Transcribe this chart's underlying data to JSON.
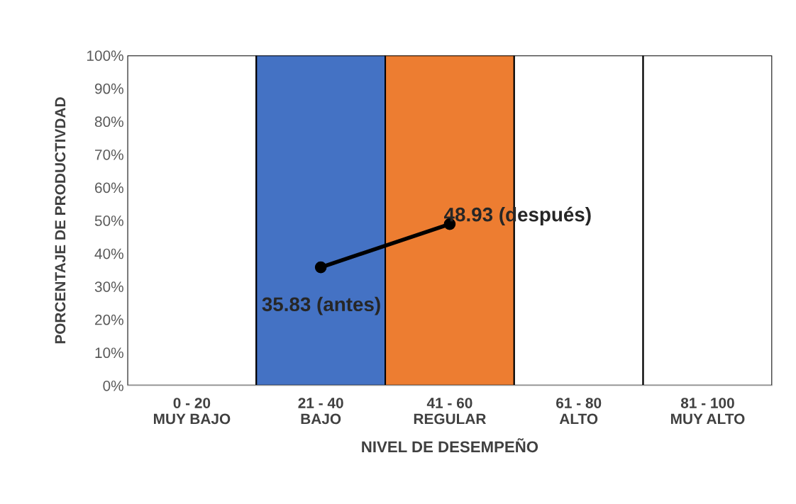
{
  "chart_data": {
    "type": "bar",
    "xlabel": "NIVEL DE DESEMPEÑO",
    "ylabel": "PORCENTAJE DE PRODUCTIVDAD",
    "categories": [
      "0 - 20\nMUY BAJO",
      "21 - 40\nBAJO",
      "41 - 60\nREGULAR",
      "61 - 80\nALTO",
      "81 - 100\nMUY ALTO"
    ],
    "series": [
      {
        "values": [
          100,
          100,
          100,
          100,
          100
        ],
        "colors": [
          "#ffffff",
          "#4472c4",
          "#ed7d31",
          "#ffffff",
          "#ffffff"
        ]
      },
      {
        "type": "line",
        "color": "#000000",
        "marker": "circle",
        "values": [
          null,
          35.83,
          48.93,
          null,
          null
        ],
        "value_labels": [
          null,
          "35.83 (antes)",
          "48.93 (después)",
          null,
          null
        ]
      }
    ],
    "ylim": [
      0,
      100
    ],
    "yticks": [
      {
        "value": 0,
        "label": "0%"
      },
      {
        "value": 10,
        "label": "10%"
      },
      {
        "value": 20,
        "label": "20%"
      },
      {
        "value": 30,
        "label": "30%"
      },
      {
        "value": 40,
        "label": "40%"
      },
      {
        "value": 50,
        "label": "50%"
      },
      {
        "value": 60,
        "label": "60%"
      },
      {
        "value": 70,
        "label": "70%"
      },
      {
        "value": 80,
        "label": "80%"
      },
      {
        "value": 90,
        "label": "90%"
      },
      {
        "value": 100,
        "label": "100%"
      }
    ],
    "grid": false,
    "legend": false
  }
}
